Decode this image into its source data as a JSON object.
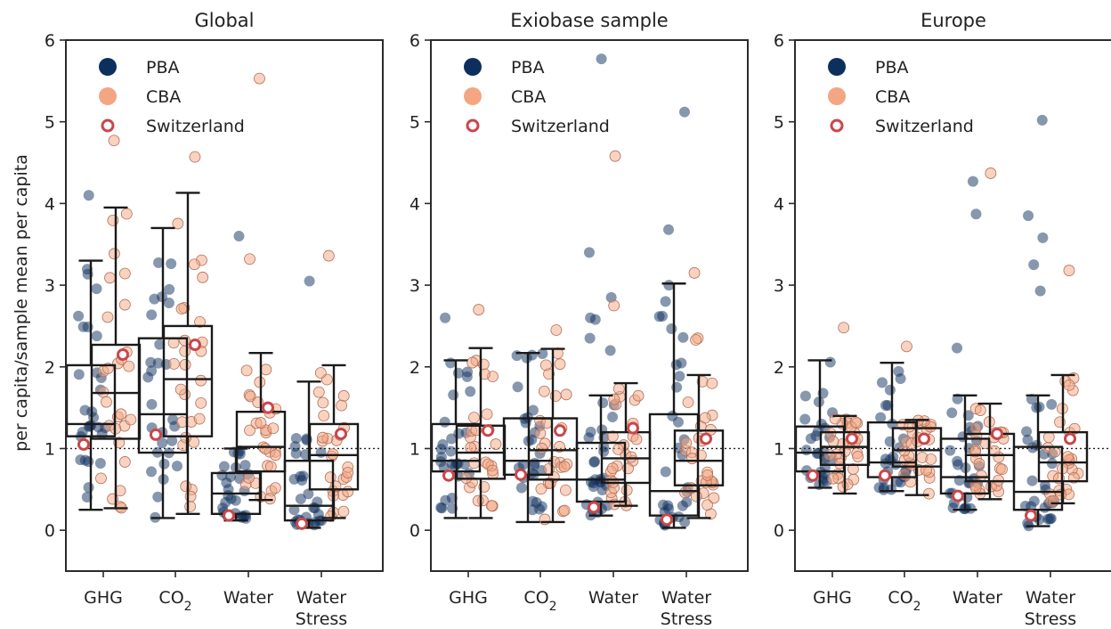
{
  "colors": {
    "pba": "#0d2f5e",
    "cba": "#f4a582",
    "switzerland": "#c9474a",
    "box": "#1a1a1a"
  },
  "ylabel": "per capita/sample mean per capita",
  "legend": [
    "PBA",
    "CBA",
    "Switzerland"
  ],
  "chart_data": [
    {
      "type": "box+strip",
      "title": "Global",
      "ylim": [
        -0.5,
        6
      ],
      "yticks": [
        "0",
        "1",
        "2",
        "3",
        "4",
        "5",
        "6"
      ],
      "reference_line": 1,
      "categories": [
        {
          "label": "GHG",
          "line2": ""
        },
        {
          "label": "CO",
          "sub": "2",
          "line2": ""
        },
        {
          "label": "Water",
          "line2": ""
        },
        {
          "label": "Water",
          "line2": "Stress"
        }
      ],
      "boxes": {
        "PBA": [
          {
            "whislo": 0.25,
            "q1": 1.15,
            "med": 1.3,
            "q3": 2.02,
            "whishi": 3.3
          },
          {
            "whislo": 0.15,
            "q1": 0.95,
            "med": 1.42,
            "q3": 2.35,
            "whishi": 3.7
          },
          {
            "whislo": 0.12,
            "q1": 0.2,
            "med": 0.45,
            "q3": 0.7,
            "whishi": 1.0
          },
          {
            "whislo": 0.03,
            "q1": 0.12,
            "med": 0.3,
            "q3": 0.85,
            "whishi": 1.82
          }
        ],
        "CBA": [
          {
            "whislo": 0.27,
            "q1": 1.12,
            "med": 1.68,
            "q3": 2.27,
            "whishi": 3.95
          },
          {
            "whislo": 0.2,
            "q1": 1.15,
            "med": 1.85,
            "q3": 2.5,
            "whishi": 4.13
          },
          {
            "whislo": 0.37,
            "q1": 0.72,
            "med": 1.02,
            "q3": 1.45,
            "whishi": 2.17
          },
          {
            "whislo": 0.15,
            "q1": 0.5,
            "med": 0.92,
            "q3": 1.3,
            "whishi": 2.02
          }
        ]
      },
      "switzerland": {
        "PBA": [
          1.05,
          1.17,
          0.18,
          0.08
        ],
        "CBA": [
          2.15,
          2.27,
          1.5,
          1.18
        ]
      },
      "outliers": {
        "PBA": [
          [
            4.1
          ],
          [],
          [
            3.6
          ],
          [
            3.05
          ]
        ],
        "CBA": [
          [
            4.77
          ],
          [
            4.57
          ],
          [
            5.53,
            3.32
          ],
          [
            3.36
          ]
        ]
      }
    },
    {
      "type": "box+strip",
      "title": "Exiobase sample",
      "ylim": [
        -0.5,
        6
      ],
      "yticks": [
        "0",
        "1",
        "2",
        "3",
        "4",
        "5",
        "6"
      ],
      "reference_line": 1,
      "categories": [
        {
          "label": "GHG",
          "line2": ""
        },
        {
          "label": "CO",
          "sub": "2",
          "line2": ""
        },
        {
          "label": "Water",
          "line2": ""
        },
        {
          "label": "Water",
          "line2": "Stress"
        }
      ],
      "boxes": {
        "PBA": [
          {
            "whislo": 0.15,
            "q1": 0.72,
            "med": 0.85,
            "q3": 1.3,
            "whishi": 2.08
          },
          {
            "whislo": 0.1,
            "q1": 0.68,
            "med": 0.85,
            "q3": 1.37,
            "whishi": 2.17
          },
          {
            "whislo": 0.18,
            "q1": 0.35,
            "med": 0.62,
            "q3": 1.07,
            "whishi": 1.65
          },
          {
            "whislo": 0.03,
            "q1": 0.18,
            "med": 0.48,
            "q3": 1.42,
            "whishi": 3.02
          }
        ],
        "CBA": [
          {
            "whislo": 0.15,
            "q1": 0.63,
            "med": 0.95,
            "q3": 1.28,
            "whishi": 2.23
          },
          {
            "whislo": 0.1,
            "q1": 0.62,
            "med": 0.98,
            "q3": 1.37,
            "whishi": 2.22
          },
          {
            "whislo": 0.3,
            "q1": 0.58,
            "med": 0.88,
            "q3": 1.2,
            "whishi": 1.8
          },
          {
            "whislo": 0.15,
            "q1": 0.55,
            "med": 0.85,
            "q3": 1.22,
            "whishi": 1.9
          }
        ]
      },
      "switzerland": {
        "PBA": [
          0.67,
          0.68,
          0.28,
          0.13
        ],
        "CBA": [
          1.22,
          1.22,
          1.25,
          1.12
        ]
      },
      "outliers": {
        "PBA": [
          [
            2.6
          ],
          [],
          [
            5.77,
            3.4,
            2.85,
            2.6,
            2.58,
            2.35,
            2.2
          ],
          [
            5.12,
            3.68,
            3.0,
            2.8,
            2.62
          ]
        ],
        "CBA": [
          [
            2.7
          ],
          [
            2.45
          ],
          [
            4.58,
            2.75
          ],
          [
            3.15,
            2.35,
            2.33
          ]
        ]
      }
    },
    {
      "type": "box+strip",
      "title": "Europe",
      "ylim": [
        -0.5,
        6
      ],
      "yticks": [
        "0",
        "1",
        "2",
        "3",
        "4",
        "5",
        "6"
      ],
      "reference_line": 1,
      "categories": [
        {
          "label": "GHG",
          "line2": ""
        },
        {
          "label": "CO",
          "sub": "2",
          "line2": ""
        },
        {
          "label": "Water",
          "line2": ""
        },
        {
          "label": "Water",
          "line2": "Stress"
        }
      ],
      "boxes": {
        "PBA": [
          {
            "whislo": 0.52,
            "q1": 0.72,
            "med": 0.95,
            "q3": 1.27,
            "whishi": 2.08
          },
          {
            "whislo": 0.48,
            "q1": 0.65,
            "med": 0.83,
            "q3": 1.32,
            "whishi": 2.05
          },
          {
            "whislo": 0.25,
            "q1": 0.45,
            "med": 0.65,
            "q3": 1.12,
            "whishi": 1.65
          },
          {
            "whislo": 0.05,
            "q1": 0.25,
            "med": 0.47,
            "q3": 1.02,
            "whishi": 1.65
          }
        ],
        "CBA": [
          {
            "whislo": 0.45,
            "q1": 0.8,
            "med": 1.02,
            "q3": 1.2,
            "whishi": 1.4
          },
          {
            "whislo": 0.43,
            "q1": 0.78,
            "med": 0.98,
            "q3": 1.25,
            "whishi": 1.35
          },
          {
            "whislo": 0.38,
            "q1": 0.6,
            "med": 0.92,
            "q3": 1.18,
            "whishi": 1.55
          },
          {
            "whislo": 0.33,
            "q1": 0.6,
            "med": 0.83,
            "q3": 1.2,
            "whishi": 1.9
          }
        ]
      },
      "switzerland": {
        "PBA": [
          0.67,
          0.67,
          0.42,
          0.18
        ],
        "CBA": [
          1.12,
          1.12,
          1.18,
          1.12
        ]
      },
      "outliers": {
        "PBA": [
          [],
          [],
          [
            4.27,
            3.87,
            2.23
          ],
          [
            5.02,
            3.85,
            3.58,
            3.25,
            2.93
          ]
        ],
        "CBA": [
          [
            2.48
          ],
          [
            2.25
          ],
          [
            4.37
          ],
          [
            3.18
          ]
        ]
      }
    }
  ]
}
